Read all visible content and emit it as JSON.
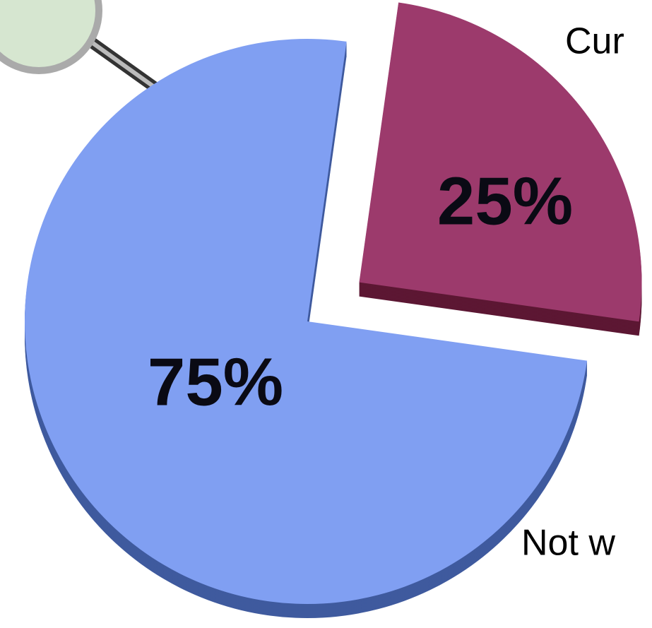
{
  "chart_data": {
    "type": "pie",
    "categories": [
      "Cur",
      "Not w"
    ],
    "values": [
      25,
      75
    ],
    "value_labels": [
      "25%",
      "75%"
    ],
    "colors": [
      "#9c3a6c",
      "#809ff2"
    ],
    "side_colors": [
      "#5c1733",
      "#3f5a9e"
    ]
  }
}
